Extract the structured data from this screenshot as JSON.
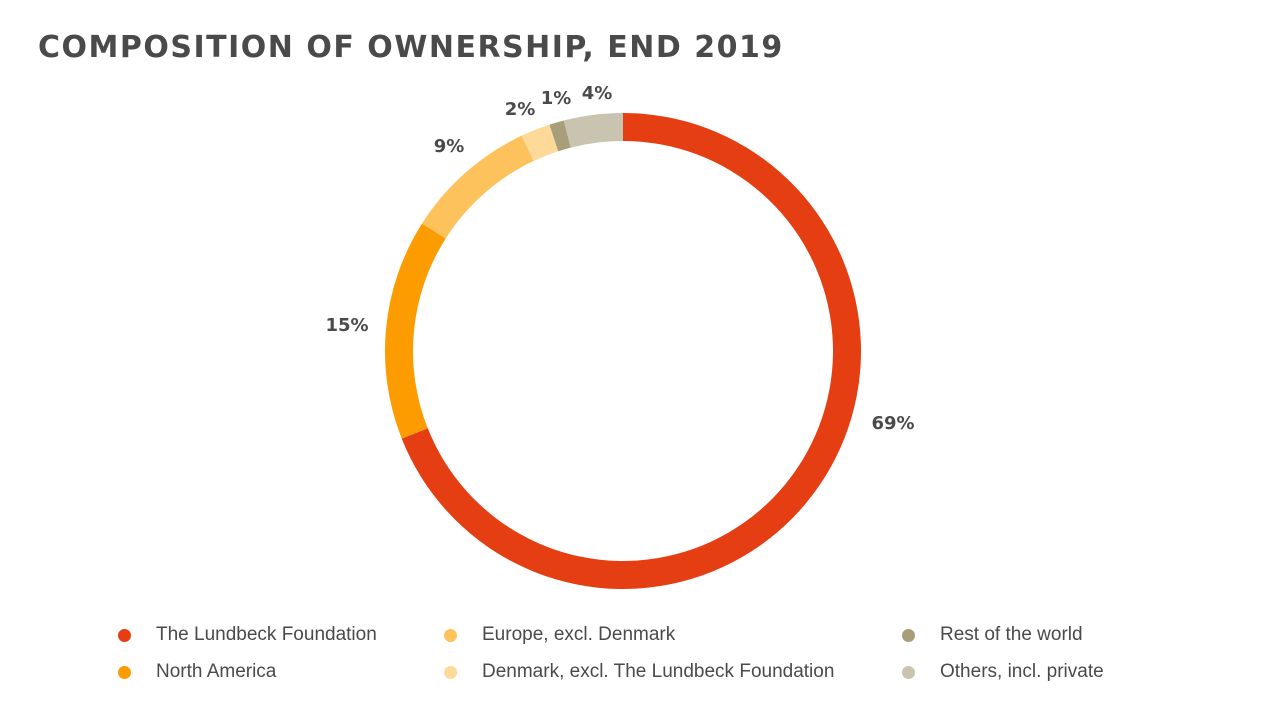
{
  "chart_data": {
    "type": "pie",
    "variant": "donut",
    "title": "COMPOSITION OF OWNERSHIP, END 2019",
    "start": "top",
    "direction": "clockwise",
    "slices": [
      {
        "name": "The Lundbeck Foundation",
        "value": 69,
        "label": "69%",
        "color": "#e63e13"
      },
      {
        "name": "North America",
        "value": 15,
        "label": "15%",
        "color": "#fc9c00"
      },
      {
        "name": "Europe, excl. Denmark",
        "value": 9,
        "label": "9%",
        "color": "#fec25d"
      },
      {
        "name": "Denmark, excl. The Lundbeck Foundation",
        "value": 2,
        "label": "2%",
        "color": "#fed99a"
      },
      {
        "name": "Rest of the world",
        "value": 1,
        "label": "1%",
        "color": "#a89e7a"
      },
      {
        "name": "Others, incl. private",
        "value": 4,
        "label": "4%",
        "color": "#c9c4b0"
      }
    ],
    "legend_position": "bottom"
  }
}
